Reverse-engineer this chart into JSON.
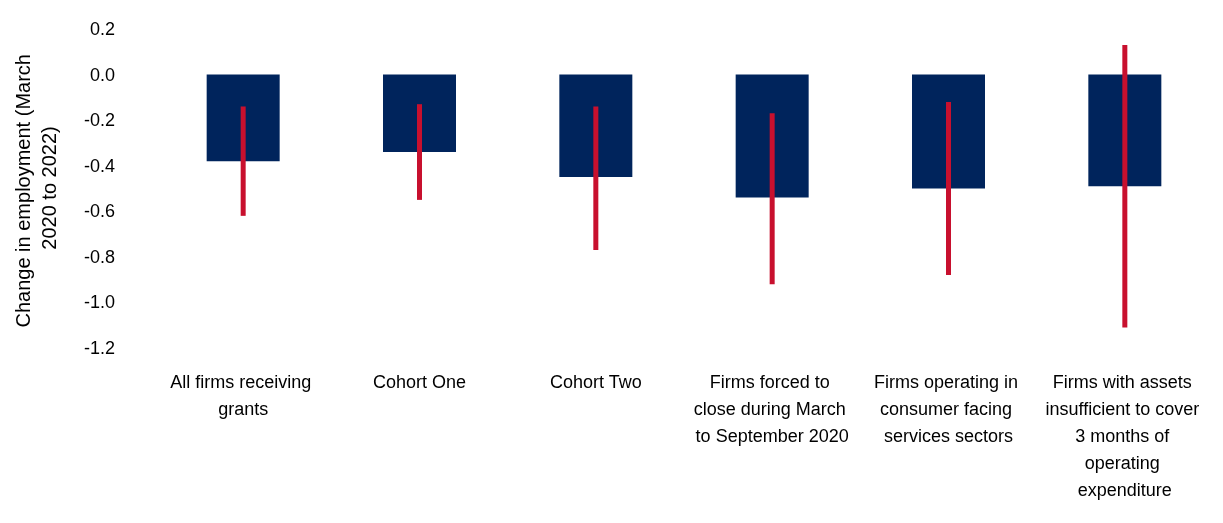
{
  "chart_data": {
    "type": "bar",
    "ylabel": "Change in employment (March 2020 to 2022)",
    "categories": [
      "All firms receiving grants",
      "Cohort One",
      "Cohort Two",
      "Firms forced to close during March to September 2020",
      "Firms operating in consumer facing services sectors",
      "Firms with assets insufficient to cover 3 months of operating expenditure"
    ],
    "values": [
      -0.38,
      -0.34,
      -0.45,
      -0.54,
      -0.5,
      -0.49
    ],
    "errors": [
      [
        -0.62,
        -0.14
      ],
      [
        -0.55,
        -0.13
      ],
      [
        -0.77,
        -0.14
      ],
      [
        -0.92,
        -0.17
      ],
      [
        -0.88,
        -0.12
      ],
      [
        -1.11,
        0.13
      ]
    ],
    "color": "#00245c",
    "ylim": [
      -1.2,
      0.2
    ],
    "yticks": [
      -1.2,
      {
        "value": -1,
        "label": "-1.0"
      },
      -0.8,
      -0.6,
      -0.4,
      -0.2,
      {
        "value": 0,
        "label": "0.0"
      },
      0.2
    ],
    "grid": false
  }
}
